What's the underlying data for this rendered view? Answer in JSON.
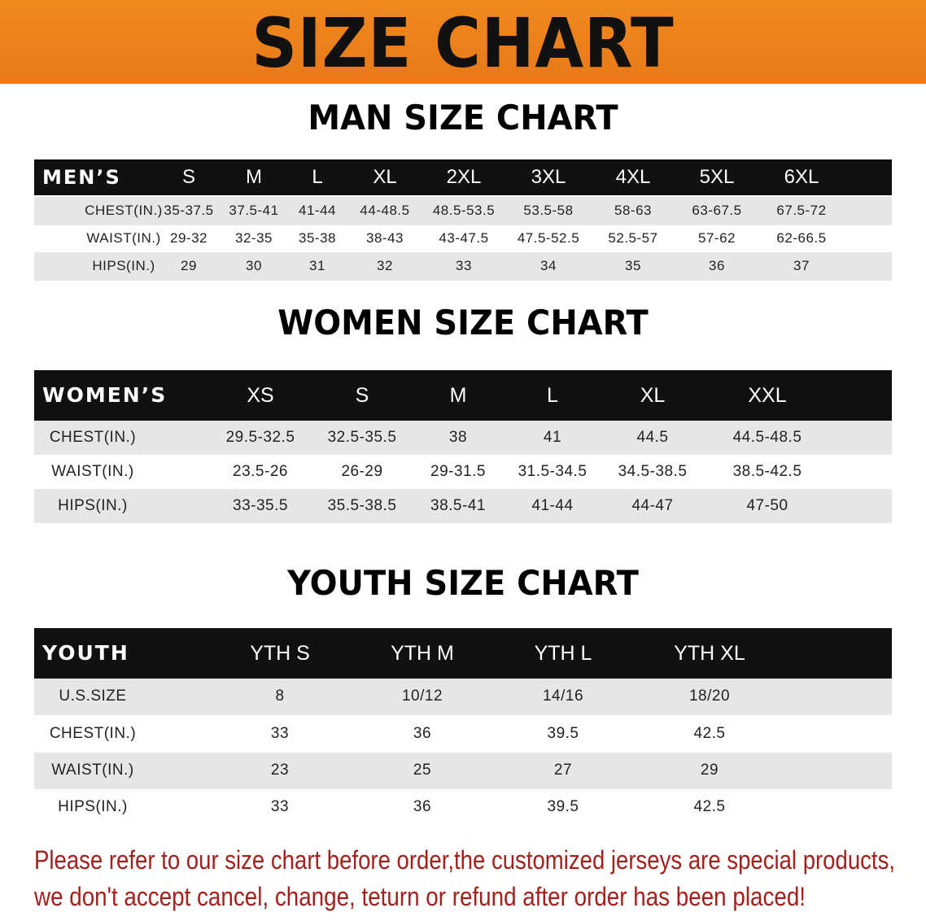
{
  "header": {
    "title": "SIZE CHART"
  },
  "sections": [
    {
      "title": "MAN SIZE CHART",
      "header": [
        "MEN’S",
        "S",
        "M",
        "L",
        "XL",
        "2XL",
        "3XL",
        "4XL",
        "5XL",
        "6XL"
      ],
      "rows": [
        [
          "CHEST(IN.)",
          "35-37.5",
          "37.5-41",
          "41-44",
          "44-48.5",
          "48.5-53.5",
          "53.5-58",
          "58-63",
          "63-67.5",
          "67.5-72"
        ],
        [
          "WAIST(IN.)",
          "29-32",
          "32-35",
          "35-38",
          "38-43",
          "43-47.5",
          "47.5-52.5",
          "52.5-57",
          "57-62",
          "62-66.5"
        ],
        [
          "HIPS(IN.)",
          "29",
          "30",
          "31",
          "32",
          "33",
          "34",
          "35",
          "36",
          "37"
        ]
      ]
    },
    {
      "title": "WOMEN SIZE CHART",
      "header": [
        "WOMEN’S",
        "XS",
        "S",
        "M",
        "L",
        "XL",
        "XXL"
      ],
      "rows": [
        [
          "CHEST(IN.)",
          "29.5-32.5",
          "32.5-35.5",
          "38",
          "41",
          "44.5",
          "44.5-48.5"
        ],
        [
          "WAIST(IN.)",
          "23.5-26",
          "26-29",
          "29-31.5",
          "31.5-34.5",
          "34.5-38.5",
          "38.5-42.5"
        ],
        [
          "HIPS(IN.)",
          "33-35.5",
          "35.5-38.5",
          "38.5-41",
          "41-44",
          "44-47",
          "47-50"
        ]
      ]
    },
    {
      "title": "YOUTH SIZE CHART",
      "header": [
        "YOUTH",
        "YTH S",
        "YTH M",
        "YTH L",
        "YTH XL"
      ],
      "rows": [
        [
          "U.S.SIZE",
          "8",
          "10/12",
          "14/16",
          "18/20"
        ],
        [
          "CHEST(IN.)",
          "33",
          "36",
          "39.5",
          "42.5"
        ],
        [
          "WAIST(IN.)",
          "23",
          "25",
          "27",
          "29"
        ],
        [
          "HIPS(IN.)",
          "33",
          "36",
          "39.5",
          "42.5"
        ]
      ]
    }
  ],
  "notice": [
    "Please refer to our size chart before order,the customized jerseys are special products,",
    "we don't accept cancel, change, teturn or refund after order has been placed!"
  ]
}
